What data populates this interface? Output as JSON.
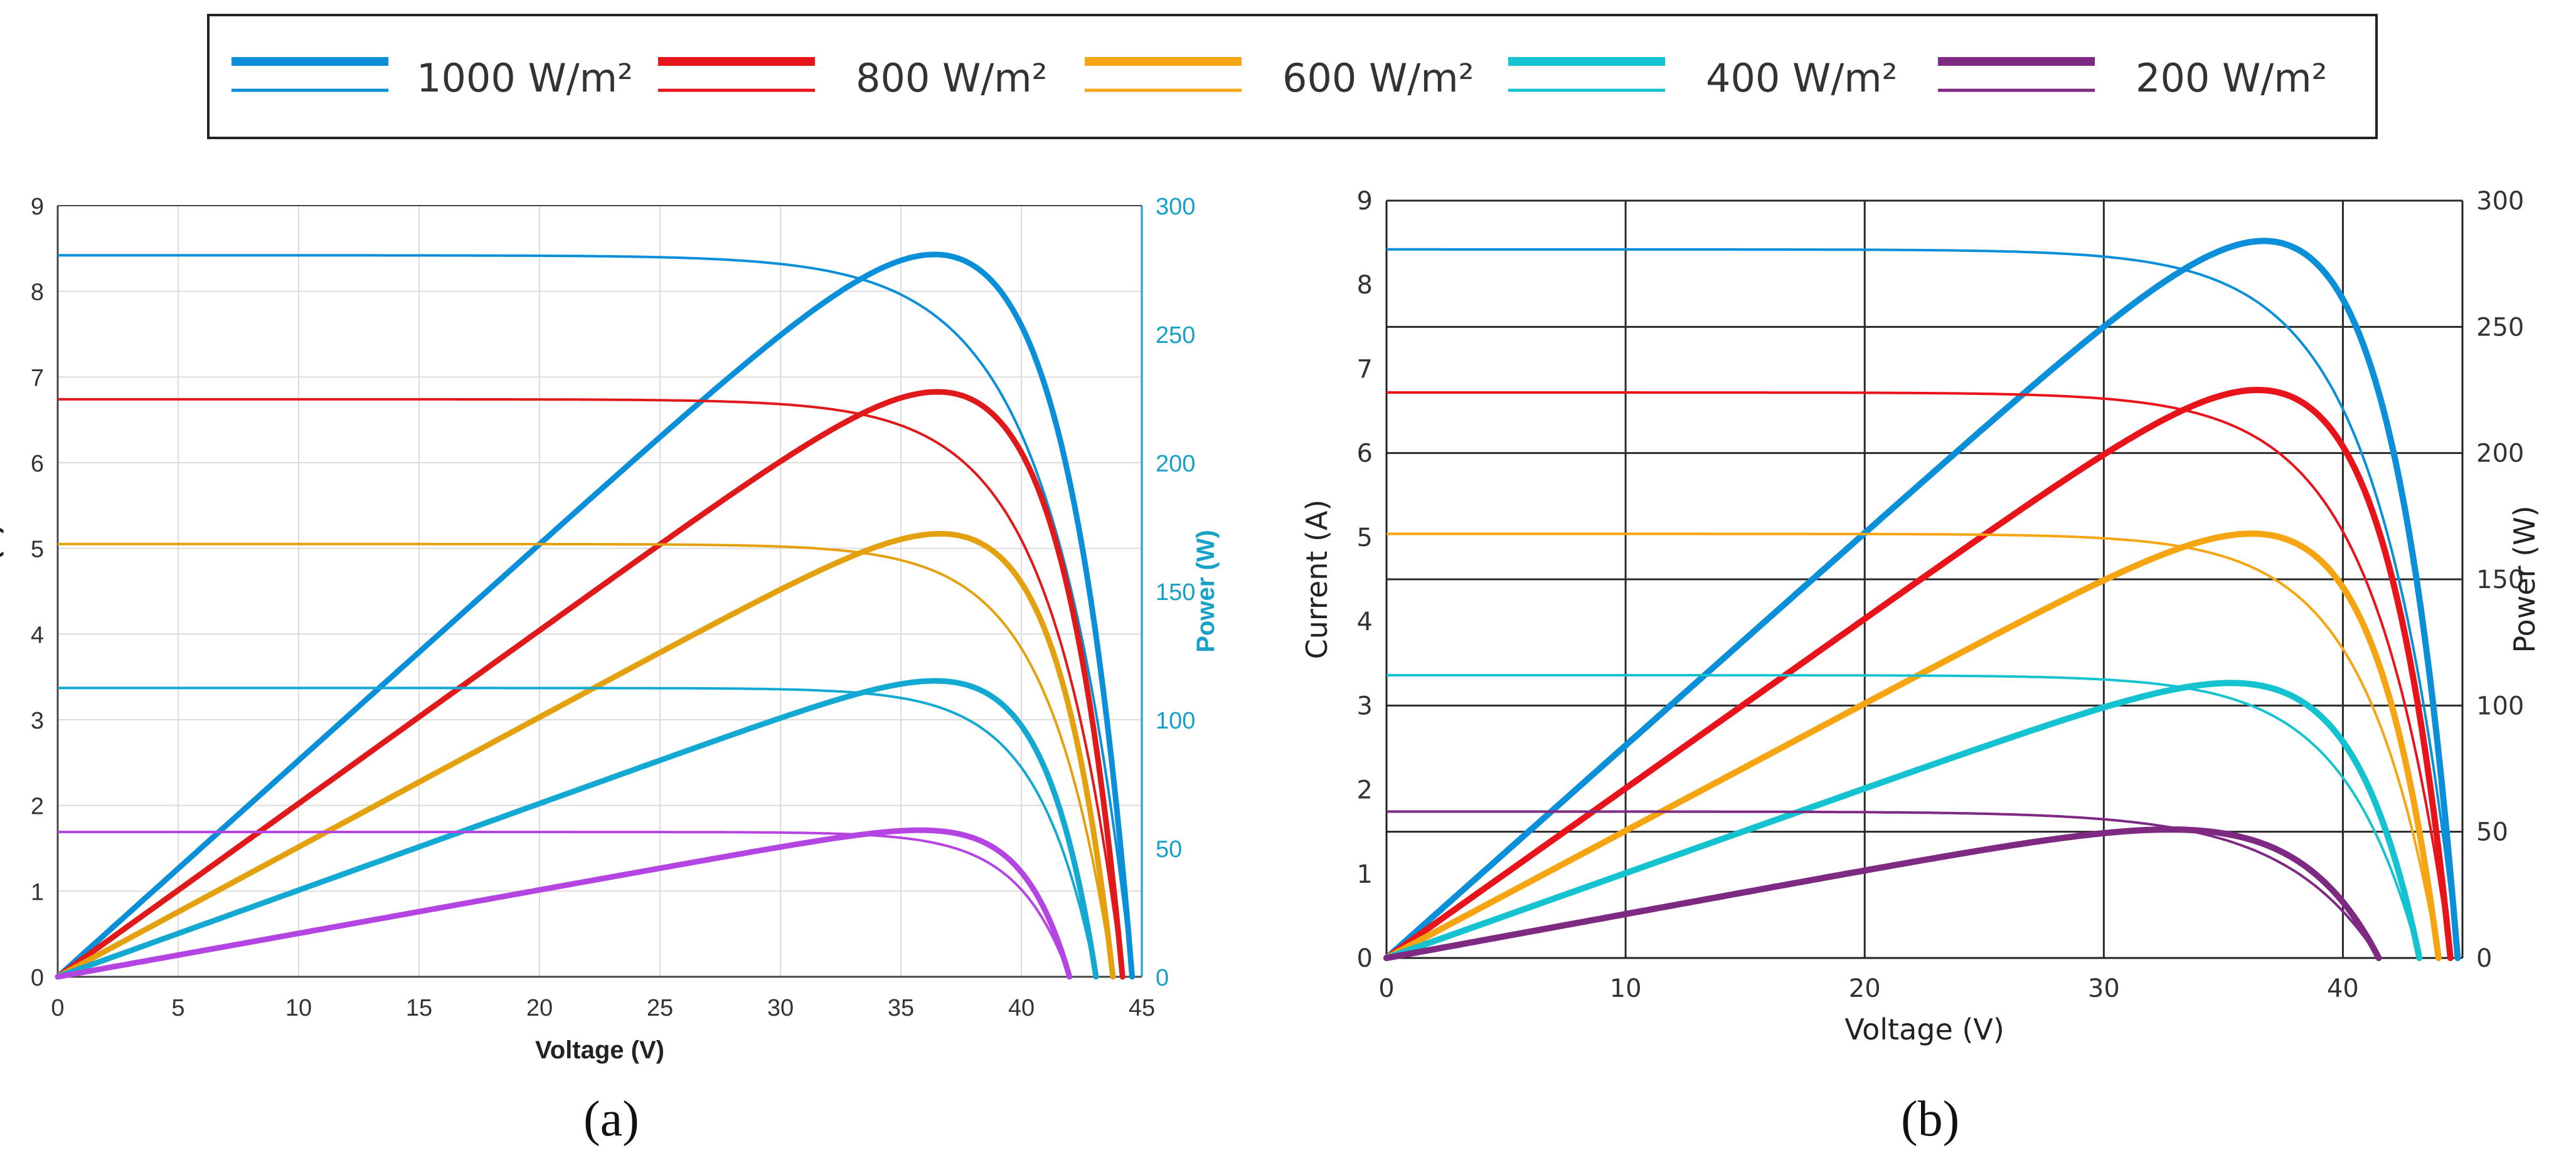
{
  "legend": {
    "entries": [
      {
        "label": "1000 W/m²",
        "color": "#0a8fd8"
      },
      {
        "label": "800 W/m²",
        "color": "#e8141c"
      },
      {
        "label": "600 W/m²",
        "color": "#f5a511"
      },
      {
        "label": "400 W/m²",
        "color": "#15c3d0"
      },
      {
        "label": "200 W/m²",
        "color": "#7e2a82"
      }
    ]
  },
  "captions": {
    "a": "(a)",
    "b": "(b)"
  },
  "chart_data": [
    {
      "id": "a",
      "type": "line",
      "xlabel": "Voltage (V)",
      "ylabel": "Current (A)",
      "y2label": "Power (W)",
      "xlim": [
        0,
        45
      ],
      "ylim": [
        0,
        9
      ],
      "y2lim": [
        0,
        300
      ],
      "xticks": [
        0,
        5,
        10,
        15,
        20,
        25,
        30,
        35,
        40,
        45
      ],
      "yticks": [
        0,
        1,
        2,
        3,
        4,
        5,
        6,
        7,
        8,
        9
      ],
      "y2ticks": [
        0,
        50,
        100,
        150,
        200,
        250,
        300
      ],
      "grid": true,
      "colors": [
        "#0a8fd8",
        "#e01a1a",
        "#e3a10f",
        "#13a9d3",
        "#b545e3"
      ],
      "series": [
        {
          "irradiance": "1000 W/m²",
          "isc": 8.42,
          "voc": 44.6,
          "pmax": 280,
          "vmp": 35.5
        },
        {
          "irradiance": "800 W/m²",
          "isc": 6.74,
          "voc": 44.2,
          "pmax": 227,
          "vmp": 35.8
        },
        {
          "irradiance": "600 W/m²",
          "isc": 5.05,
          "voc": 43.8,
          "pmax": 172,
          "vmp": 36.0
        },
        {
          "irradiance": "400 W/m²",
          "isc": 3.37,
          "voc": 43.1,
          "pmax": 115,
          "vmp": 36.0
        },
        {
          "irradiance": "200 W/m²",
          "isc": 1.69,
          "voc": 42.0,
          "pmax": 57,
          "vmp": 36.0
        }
      ]
    },
    {
      "id": "b",
      "type": "line",
      "xlabel": "Voltage (V)",
      "ylabel": "Current (A)",
      "y2label": "Power (W)",
      "xlim": [
        0,
        45
      ],
      "ylim": [
        0,
        9
      ],
      "y2lim": [
        0,
        300
      ],
      "xticks": [
        0,
        10,
        20,
        30,
        40
      ],
      "yticks": [
        0,
        1,
        2,
        3,
        4,
        5,
        6,
        7,
        8,
        9
      ],
      "y2ticks": [
        0,
        50,
        100,
        150,
        200,
        250,
        300
      ],
      "grid": true,
      "colors": [
        "#0a8fd8",
        "#e8141c",
        "#f5a511",
        "#15c3d0",
        "#7e2a82"
      ],
      "series": [
        {
          "irradiance": "1000 W/m²",
          "isc": 8.42,
          "voc": 44.8,
          "pmax": 283,
          "vmp": 35.8
        },
        {
          "irradiance": "800 W/m²",
          "isc": 6.72,
          "voc": 44.5,
          "pmax": 225,
          "vmp": 36.5
        },
        {
          "irradiance": "600 W/m²",
          "isc": 5.04,
          "voc": 44.0,
          "pmax": 168,
          "vmp": 36.5
        },
        {
          "irradiance": "400 W/m²",
          "isc": 3.36,
          "voc": 43.2,
          "pmax": 108,
          "vmp": 36.5
        },
        {
          "irradiance": "200 W/m²",
          "isc": 1.74,
          "voc": 41.5,
          "pmax": 50,
          "vmp": 34.5
        }
      ]
    }
  ]
}
